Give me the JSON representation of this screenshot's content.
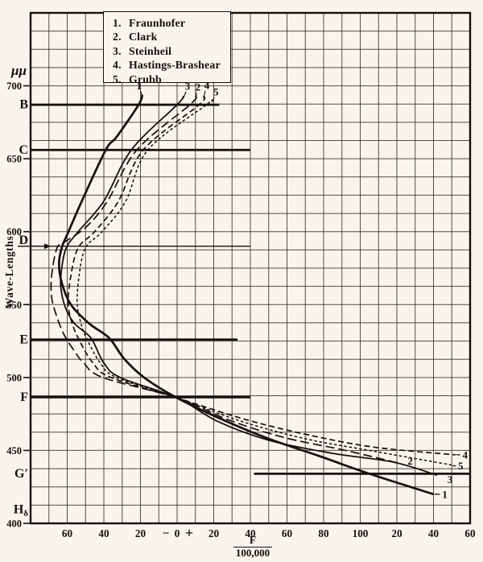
{
  "axes": {
    "y_unit": "μμ",
    "y_title": "Wave-Lengths",
    "x_title_numerator": "F",
    "x_title_denominator": "100,000"
  },
  "legend": {
    "items": [
      {
        "number": "1.",
        "name": "Fraunhofer"
      },
      {
        "number": "2.",
        "name": "Clark"
      },
      {
        "number": "3.",
        "name": "Steinheil"
      },
      {
        "number": "4.",
        "name": "Hastings-Brashear"
      },
      {
        "number": "5.",
        "name": "Grubb"
      }
    ]
  },
  "chart_data": {
    "type": "line",
    "x_axis": {
      "label": "F/100,000",
      "domain": [
        -80,
        160
      ],
      "grid_step": 10,
      "zero_minus": "−",
      "zero_plus": "+",
      "ticks": [
        {
          "v": -60,
          "t": "60"
        },
        {
          "v": -40,
          "t": "40"
        },
        {
          "v": -20,
          "t": "20"
        },
        {
          "v": 0,
          "t": "0"
        },
        {
          "v": 20,
          "t": "20"
        },
        {
          "v": 40,
          "t": "40"
        },
        {
          "v": 60,
          "t": "60"
        },
        {
          "v": 80,
          "t": "80"
        },
        {
          "v": 100,
          "t": "100"
        },
        {
          "v": 120,
          "t": "20"
        },
        {
          "v": 140,
          "t": "40"
        },
        {
          "v": 160,
          "t": "60"
        }
      ]
    },
    "y_axis": {
      "unit": "μμ",
      "label": "Wave-Lengths",
      "domain": [
        400,
        750
      ],
      "grid_step": 12.5,
      "ticks": [
        700,
        650,
        600,
        550,
        500,
        450,
        400
      ]
    },
    "spectral_lines": [
      {
        "label": "B",
        "subscript": "",
        "wavelength": 687,
        "x_from": -80,
        "x_to": 23,
        "weight": "thick",
        "arrow": false
      },
      {
        "label": "C",
        "subscript": "",
        "wavelength": 656,
        "x_from": -80,
        "x_to": 40,
        "weight": "thick",
        "arrow": false
      },
      {
        "label": "D",
        "subscript": "",
        "wavelength": 590,
        "x_from": -80,
        "x_to": 40,
        "weight": "thin",
        "arrow": true
      },
      {
        "label": "E",
        "subscript": "",
        "wavelength": 526,
        "x_from": -80,
        "x_to": 33,
        "weight": "thick",
        "arrow": false
      },
      {
        "label": "F",
        "subscript": "",
        "wavelength": 486.5,
        "x_from": -80,
        "x_to": 40,
        "weight": "thick",
        "arrow": false
      },
      {
        "label": "G′",
        "subscript": "",
        "wavelength": 434,
        "x_from": 42,
        "x_to": 160,
        "weight": "thick",
        "arrow": false
      },
      {
        "label": "H",
        "subscript": "δ",
        "wavelength": 410,
        "x_from": null,
        "x_to": null,
        "weight": "none",
        "arrow": false
      }
    ],
    "series": [
      {
        "number": "1",
        "name": "Fraunhofer",
        "style": "solid-thick",
        "points": [
          [
            -19,
            694
          ],
          [
            -21,
            687
          ],
          [
            -33,
            665
          ],
          [
            -39,
            656
          ],
          [
            -52,
            621
          ],
          [
            -60,
            598
          ],
          [
            -63,
            589
          ],
          [
            -64.5,
            578
          ],
          [
            -63,
            565
          ],
          [
            -58,
            550
          ],
          [
            -48,
            537
          ],
          [
            -37,
            527
          ],
          [
            -29,
            513
          ],
          [
            -18,
            500
          ],
          [
            0,
            486
          ],
          [
            25,
            471
          ],
          [
            50,
            458
          ],
          [
            78,
            446
          ],
          [
            105,
            434
          ],
          [
            140,
            420
          ]
        ]
      },
      {
        "number": "2",
        "name": "Clark",
        "style": "long-dash",
        "points": [
          [
            10.5,
            693
          ],
          [
            7,
            687
          ],
          [
            -22,
            656
          ],
          [
            -38,
            621
          ],
          [
            -49,
            604
          ],
          [
            -60,
            594
          ],
          [
            -65.5,
            589
          ],
          [
            -68.5,
            570
          ],
          [
            -68.5,
            555
          ],
          [
            -66,
            543
          ],
          [
            -62,
            530
          ],
          [
            -56,
            518
          ],
          [
            -51,
            510
          ],
          [
            -40.5,
            500
          ],
          [
            0,
            486
          ],
          [
            28,
            471
          ],
          [
            58,
            459
          ],
          [
            92,
            450
          ],
          [
            122,
            441
          ]
        ]
      },
      {
        "number": "3",
        "name": "Steinheil",
        "style": "solid",
        "points": [
          [
            3.5,
            693
          ],
          [
            0,
            687
          ],
          [
            -25,
            656
          ],
          [
            -40,
            621
          ],
          [
            -54,
            600
          ],
          [
            -60.5,
            589
          ],
          [
            -63,
            575
          ],
          [
            -63.5,
            562
          ],
          [
            -61,
            548
          ],
          [
            -56,
            537
          ],
          [
            -47,
            527
          ],
          [
            -40,
            510
          ],
          [
            -31,
            500
          ],
          [
            0,
            486
          ],
          [
            22,
            470
          ],
          [
            50,
            457
          ],
          [
            85,
            448
          ],
          [
            118,
            442
          ],
          [
            142,
            433
          ]
        ]
      },
      {
        "number": "4",
        "name": "Hastings-Brashear",
        "style": "dash",
        "points": [
          [
            14.5,
            693
          ],
          [
            12,
            687
          ],
          [
            -18.5,
            656
          ],
          [
            -32,
            621
          ],
          [
            -45,
            600
          ],
          [
            -54,
            589
          ],
          [
            -58,
            570
          ],
          [
            -59.5,
            552
          ],
          [
            -58,
            540
          ],
          [
            -54,
            527
          ],
          [
            -46,
            510
          ],
          [
            -36,
            500
          ],
          [
            0,
            486
          ],
          [
            38,
            471
          ],
          [
            74,
            460
          ],
          [
            109,
            452
          ],
          [
            152,
            447
          ]
        ]
      },
      {
        "number": "5",
        "name": "Grubb",
        "style": "short-dash",
        "points": [
          [
            19,
            690
          ],
          [
            16,
            687
          ],
          [
            -16,
            656
          ],
          [
            -28,
            621
          ],
          [
            -41,
            600
          ],
          [
            -50,
            589
          ],
          [
            -53.5,
            570
          ],
          [
            -54.5,
            550
          ],
          [
            -52,
            535
          ],
          [
            -49.5,
            527
          ],
          [
            -42,
            510
          ],
          [
            -33,
            500
          ],
          [
            0,
            486
          ],
          [
            35,
            470
          ],
          [
            70,
            458
          ],
          [
            105,
            450
          ],
          [
            150,
            440
          ]
        ]
      }
    ]
  }
}
